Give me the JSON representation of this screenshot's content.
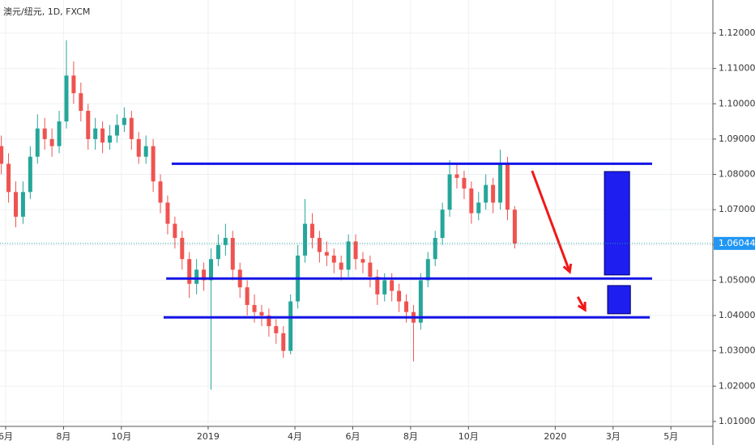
{
  "chart_data": {
    "type": "candlestick",
    "title": "澳元/纽元, 1D, FXCM",
    "up_color": "#26a69a",
    "down_color": "#ef5350",
    "grid": true,
    "xlim": [
      -0.196,
      24.45
    ],
    "ylim": [
      1.0086,
      1.1294
    ],
    "xticks": [
      {
        "value": 0,
        "label": "6月"
      },
      {
        "value": 2,
        "label": "8月"
      },
      {
        "value": 4,
        "label": "10月"
      },
      {
        "value": 7,
        "label": "2019"
      },
      {
        "value": 10,
        "label": "4月"
      },
      {
        "value": 12,
        "label": "6月"
      },
      {
        "value": 14,
        "label": "8月"
      },
      {
        "value": 16,
        "label": "10月"
      },
      {
        "value": 19,
        "label": "2020"
      },
      {
        "value": 21,
        "label": "3月"
      },
      {
        "value": 23,
        "label": "5月"
      }
    ],
    "yticks": [
      {
        "value": 1.12,
        "label": "1.12000"
      },
      {
        "value": 1.11,
        "label": "1.11000"
      },
      {
        "value": 1.1,
        "label": "1.10000"
      },
      {
        "value": 1.09,
        "label": "1.09000"
      },
      {
        "value": 1.08,
        "label": "1.08000"
      },
      {
        "value": 1.07,
        "label": "1.07000"
      },
      {
        "value": 1.06,
        "label": "1.06000"
      },
      {
        "value": 1.05,
        "label": "1.05000"
      },
      {
        "value": 1.04,
        "label": "1.04000"
      },
      {
        "value": 1.03,
        "label": "1.03000"
      },
      {
        "value": 1.02,
        "label": "1.02000"
      },
      {
        "value": 1.01,
        "label": "1.01000"
      }
    ],
    "last_price": 1.06044,
    "x": [
      -0.15,
      0.1,
      0.35,
      0.6,
      0.85,
      1.1,
      1.35,
      1.6,
      1.85,
      2.1,
      2.35,
      2.6,
      2.85,
      3.1,
      3.35,
      3.6,
      3.85,
      4.1,
      4.35,
      4.6,
      4.85,
      5.1,
      5.35,
      5.6,
      5.85,
      6.1,
      6.35,
      6.6,
      6.85,
      7.1,
      7.35,
      7.6,
      7.85,
      8.1,
      8.35,
      8.6,
      8.85,
      9.1,
      9.35,
      9.6,
      9.85,
      10.1,
      10.35,
      10.6,
      10.85,
      11.1,
      11.35,
      11.6,
      11.85,
      12.1,
      12.35,
      12.6,
      12.85,
      13.1,
      13.35,
      13.6,
      13.85,
      14.1,
      14.35,
      14.6,
      14.85,
      15.1,
      15.35,
      15.6,
      15.85,
      16.1,
      16.35,
      16.6,
      16.85,
      17.1,
      17.35,
      17.6
    ],
    "open": [
      1.088,
      1.083,
      1.075,
      1.068,
      1.075,
      1.085,
      1.093,
      1.09,
      1.088,
      1.095,
      1.108,
      1.103,
      1.098,
      1.09,
      1.093,
      1.089,
      1.091,
      1.094,
      1.096,
      1.09,
      1.085,
      1.088,
      1.078,
      1.072,
      1.066,
      1.062,
      1.056,
      1.049,
      1.053,
      1.05,
      1.056,
      1.06,
      1.062,
      1.053,
      1.048,
      1.043,
      1.041,
      1.04,
      1.037,
      1.035,
      1.03,
      1.044,
      1.057,
      1.066,
      1.062,
      1.058,
      1.057,
      1.055,
      1.053,
      1.061,
      1.056,
      1.055,
      1.051,
      1.046,
      1.05,
      1.047,
      1.044,
      1.041,
      1.038,
      1.05,
      1.056,
      1.062,
      1.07,
      1.08,
      1.079,
      1.076,
      1.069,
      1.072,
      1.077,
      1.072,
      1.083,
      1.07
    ],
    "high": [
      1.091,
      1.086,
      1.078,
      1.078,
      1.088,
      1.097,
      1.096,
      1.093,
      1.098,
      1.118,
      1.112,
      1.106,
      1.1,
      1.096,
      1.095,
      1.094,
      1.097,
      1.099,
      1.098,
      1.092,
      1.091,
      1.09,
      1.08,
      1.074,
      1.068,
      1.064,
      1.058,
      1.056,
      1.055,
      1.059,
      1.063,
      1.066,
      1.064,
      1.055,
      1.05,
      1.046,
      1.043,
      1.042,
      1.039,
      1.037,
      1.046,
      1.06,
      1.073,
      1.069,
      1.064,
      1.061,
      1.059,
      1.057,
      1.063,
      1.063,
      1.058,
      1.057,
      1.053,
      1.052,
      1.052,
      1.049,
      1.046,
      1.043,
      1.052,
      1.058,
      1.064,
      1.072,
      1.084,
      1.083,
      1.081,
      1.078,
      1.075,
      1.08,
      1.079,
      1.087,
      1.085,
      1.071
    ],
    "low": [
      1.08,
      1.072,
      1.065,
      1.066,
      1.073,
      1.083,
      1.087,
      1.085,
      1.086,
      1.093,
      1.1,
      1.095,
      1.087,
      1.087,
      1.086,
      1.087,
      1.089,
      1.092,
      1.087,
      1.083,
      1.083,
      1.075,
      1.069,
      1.063,
      1.059,
      1.053,
      1.045,
      1.046,
      1.047,
      1.019,
      1.054,
      1.057,
      1.05,
      1.045,
      1.04,
      1.038,
      1.037,
      1.034,
      1.032,
      1.028,
      1.029,
      1.042,
      1.055,
      1.059,
      1.055,
      1.054,
      1.052,
      1.05,
      1.051,
      1.053,
      1.052,
      1.048,
      1.043,
      1.044,
      1.044,
      1.041,
      1.038,
      1.027,
      1.036,
      1.048,
      1.054,
      1.06,
      1.068,
      1.076,
      1.073,
      1.066,
      1.067,
      1.07,
      1.069,
      1.07,
      1.067,
      1.059
    ],
    "close": [
      1.083,
      1.075,
      1.068,
      1.075,
      1.085,
      1.093,
      1.09,
      1.088,
      1.095,
      1.108,
      1.103,
      1.098,
      1.09,
      1.093,
      1.089,
      1.091,
      1.094,
      1.096,
      1.09,
      1.085,
      1.088,
      1.078,
      1.072,
      1.066,
      1.062,
      1.056,
      1.049,
      1.053,
      1.05,
      1.056,
      1.06,
      1.062,
      1.053,
      1.048,
      1.043,
      1.041,
      1.04,
      1.037,
      1.035,
      1.03,
      1.044,
      1.057,
      1.066,
      1.062,
      1.058,
      1.057,
      1.055,
      1.053,
      1.061,
      1.056,
      1.055,
      1.051,
      1.046,
      1.05,
      1.047,
      1.044,
      1.041,
      1.038,
      1.05,
      1.056,
      1.062,
      1.07,
      1.08,
      1.079,
      1.076,
      1.069,
      1.072,
      1.077,
      1.072,
      1.083,
      1.07,
      1.0604
    ],
    "levels": [
      {
        "price": 1.083,
        "x": [
          5.74,
          22.35
        ],
        "color": "#1414e6"
      },
      {
        "price": 1.0505,
        "x": [
          5.55,
          22.35
        ],
        "color": "#1414e6"
      },
      {
        "price": 1.0395,
        "x": [
          5.46,
          22.27
        ],
        "color": "#1414e6"
      }
    ],
    "arrows": [
      {
        "x": [
          18.2,
          19.5
        ],
        "y": [
          1.081,
          1.0524
        ],
        "color": "#f01818"
      },
      {
        "x": [
          19.78,
          20.03
        ],
        "y": [
          1.0453,
          1.0416
        ],
        "color": "#f01818"
      }
    ],
    "boxes": [
      {
        "x": [
          20.7,
          21.57
        ],
        "y": [
          1.0515,
          1.0808
        ],
        "color": "#1e1ef0"
      },
      {
        "x": [
          20.81,
          21.6
        ],
        "y": [
          1.0405,
          1.0485
        ],
        "color": "#1e1ef0"
      }
    ]
  }
}
